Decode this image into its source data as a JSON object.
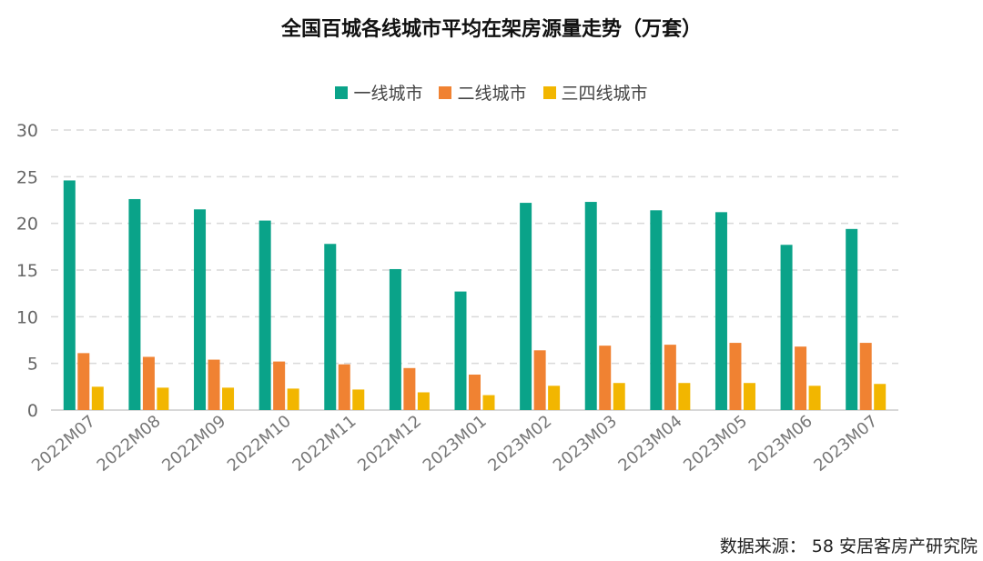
{
  "chart_data": {
    "type": "bar",
    "title": "全国百城各线城市平均在架房源量走势（万套）",
    "categories": [
      "2022M07",
      "2022M08",
      "2022M09",
      "2022M10",
      "2022M11",
      "2022M12",
      "2023M01",
      "2023M02",
      "2023M03",
      "2023M04",
      "2023M05",
      "2023M06",
      "2023M07"
    ],
    "series": [
      {
        "name": "一线城市",
        "color": "#0aa389",
        "values": [
          24.6,
          22.6,
          21.5,
          20.3,
          17.8,
          15.1,
          12.7,
          22.2,
          22.3,
          21.4,
          21.2,
          17.7,
          19.4
        ]
      },
      {
        "name": "二线城市",
        "color": "#f08232",
        "values": [
          6.1,
          5.7,
          5.4,
          5.2,
          4.9,
          4.5,
          3.8,
          6.4,
          6.9,
          7.0,
          7.2,
          6.8,
          7.2
        ]
      },
      {
        "name": "三四线城市",
        "color": "#f2b600",
        "values": [
          2.5,
          2.4,
          2.4,
          2.3,
          2.2,
          1.9,
          1.6,
          2.6,
          2.9,
          2.9,
          2.9,
          2.6,
          2.8
        ]
      }
    ],
    "ylim": [
      0,
      30
    ],
    "yticks": [
      "0",
      "5",
      "10",
      "15",
      "20",
      "25",
      "30"
    ],
    "grid": true,
    "legend_position": "top-center"
  },
  "source": "数据来源：  58 安居客房产研究院"
}
